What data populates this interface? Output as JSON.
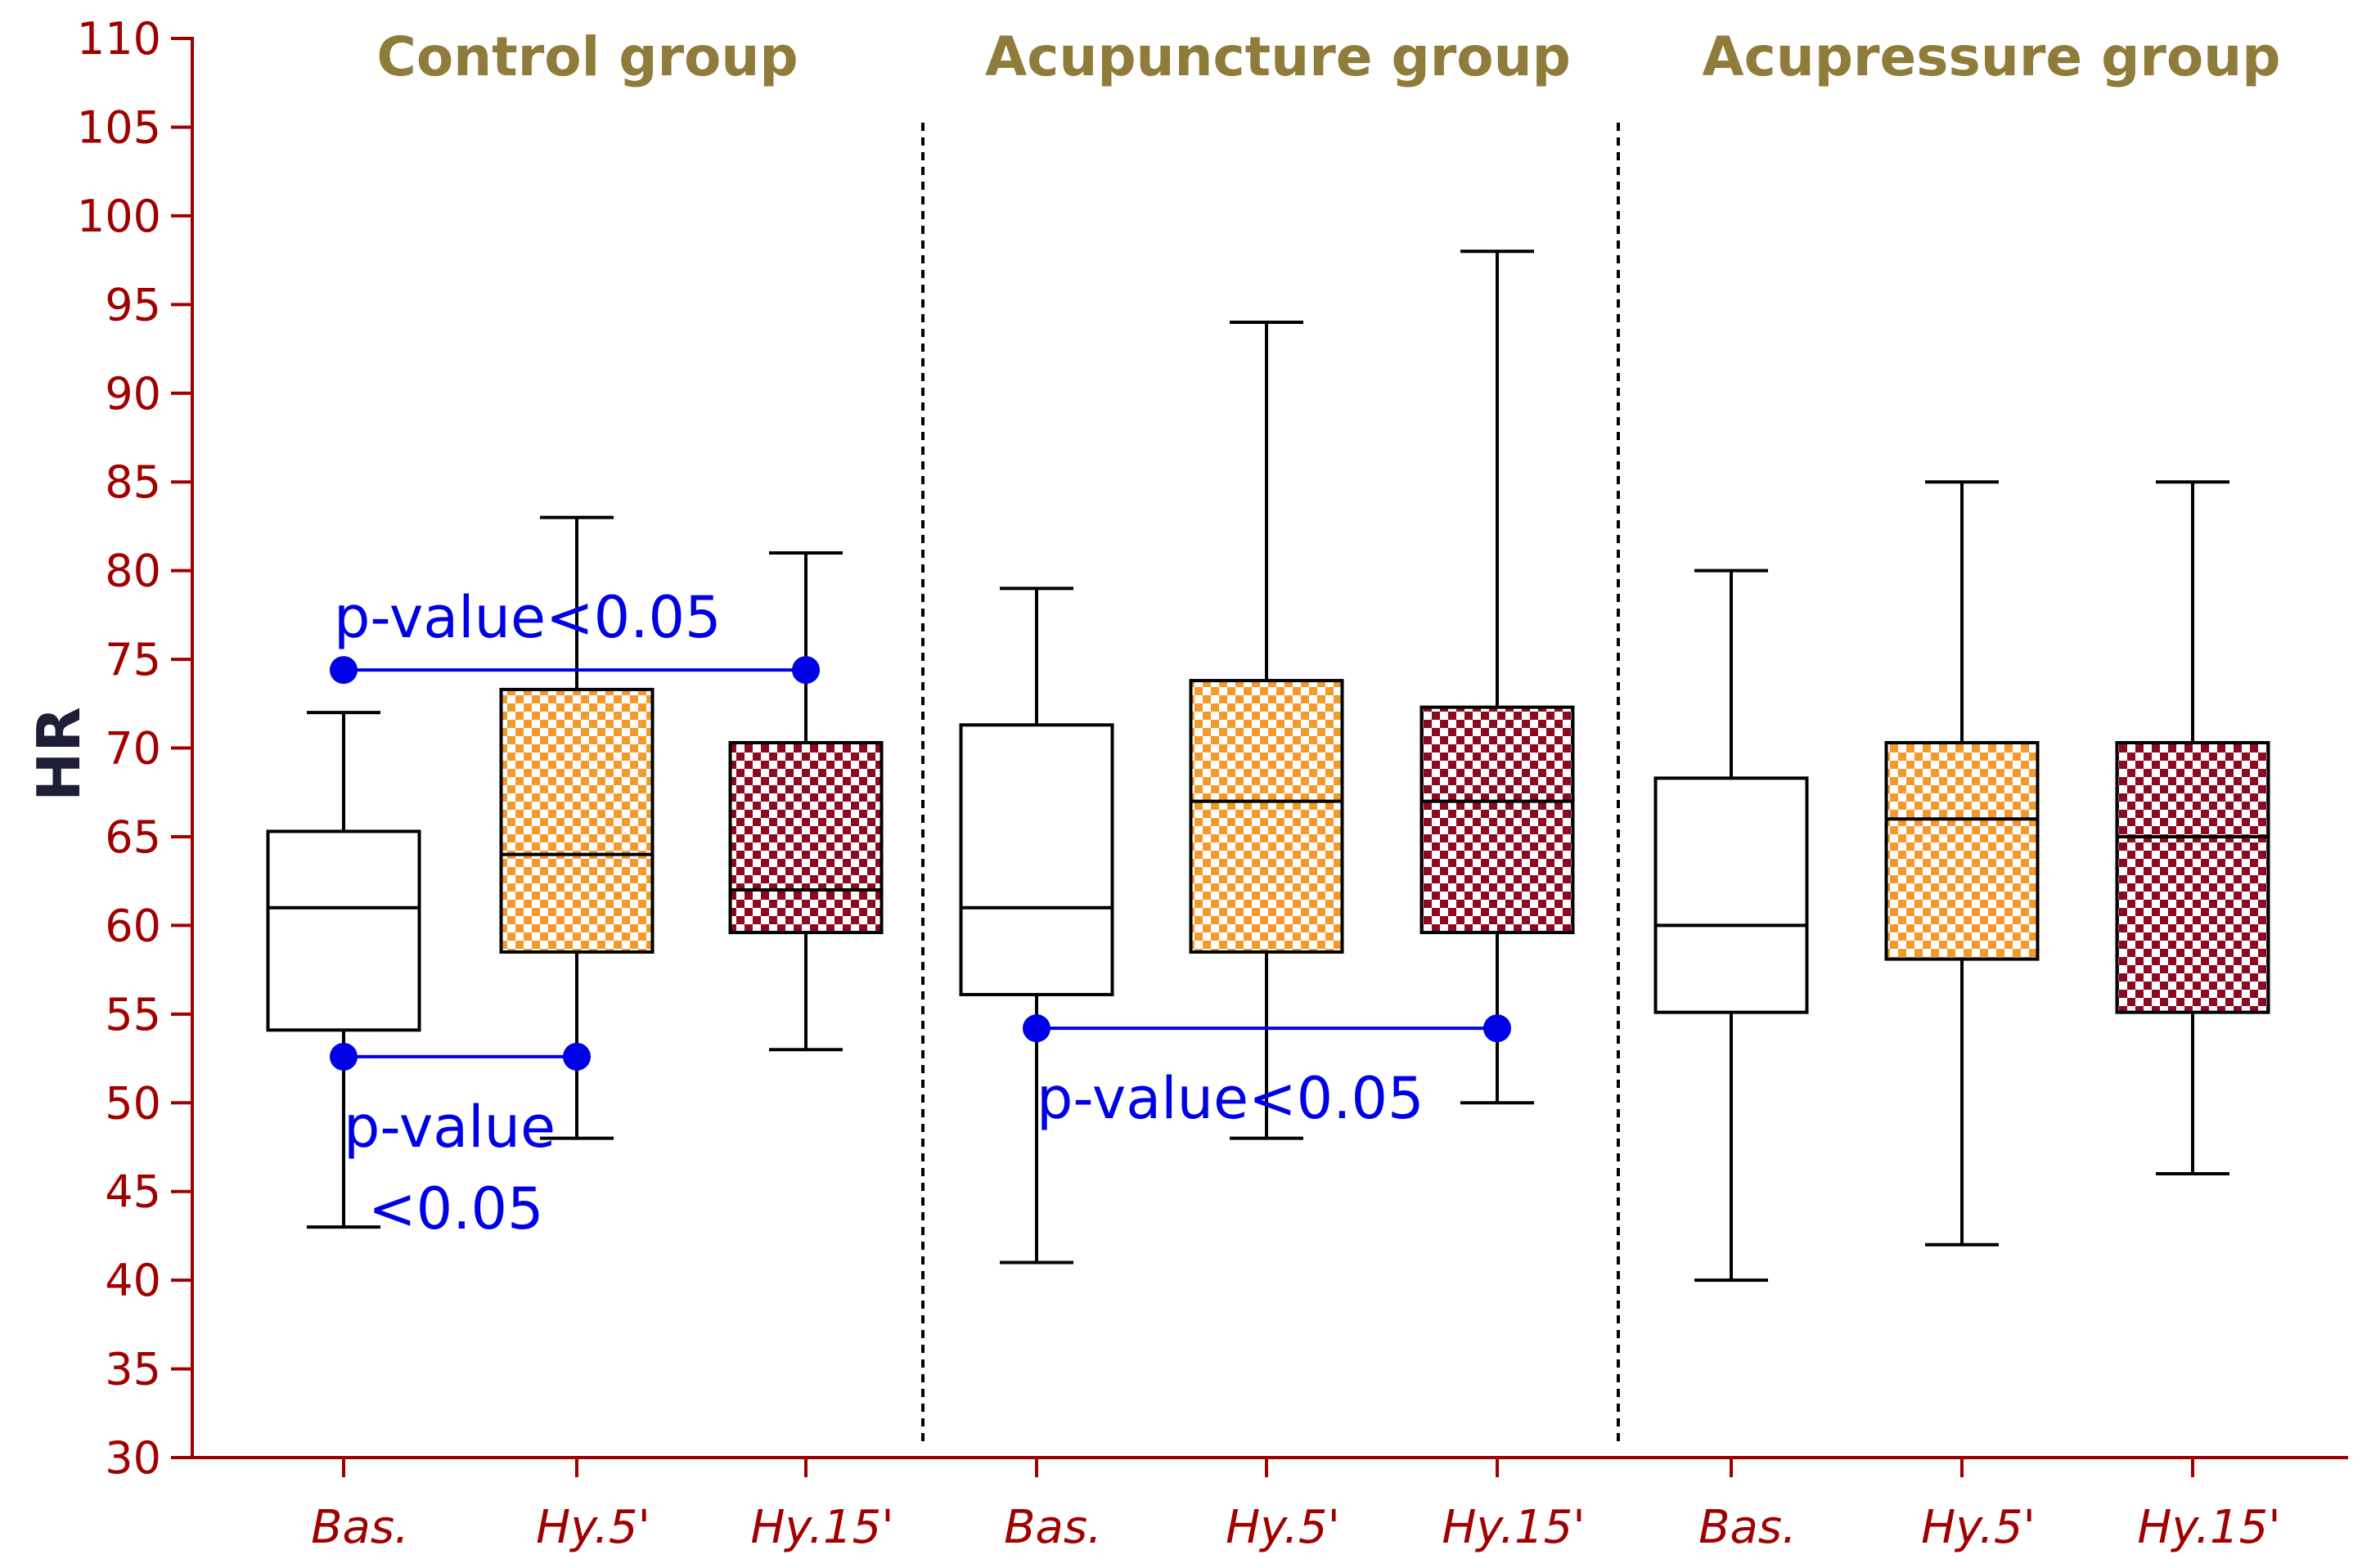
{
  "chart_data": {
    "type": "boxplot",
    "title": "",
    "xlabel": "",
    "ylabel": "HR",
    "ylim": [
      30,
      110
    ],
    "ytick_step": 5,
    "colors": {
      "axis": "#a00000",
      "group_title": "#8f7b3a",
      "annotation": "#0000e6",
      "baseline_fill": "#ffffff",
      "hy5_fill": "#f39a2b",
      "hy15_fill": "#8b0a1f",
      "checker_light": "#ffffff"
    },
    "groups": [
      {
        "title": "Control group",
        "boxes": [
          {
            "label": "Bas.",
            "pattern": "none",
            "whisker_low": 43,
            "q1": 54.1,
            "median": 61,
            "q3": 65.3,
            "whisker_high": 72
          },
          {
            "label": "Hy.5'",
            "pattern": "orange",
            "whisker_low": 48,
            "q1": 58.5,
            "median": 64,
            "q3": 73.3,
            "whisker_high": 83
          },
          {
            "label": "Hy.15'",
            "pattern": "red",
            "whisker_low": 53,
            "q1": 59.6,
            "median": 62,
            "q3": 70.3,
            "whisker_high": 81
          }
        ]
      },
      {
        "title": "Acupuncture group",
        "boxes": [
          {
            "label": "Bas.",
            "pattern": "none",
            "whisker_low": 41,
            "q1": 56.1,
            "median": 61,
            "q3": 71.3,
            "whisker_high": 79
          },
          {
            "label": "Hy.5'",
            "pattern": "orange",
            "whisker_low": 48,
            "q1": 58.5,
            "median": 67,
            "q3": 73.8,
            "whisker_high": 94
          },
          {
            "label": "Hy.15'",
            "pattern": "red",
            "whisker_low": 50,
            "q1": 59.6,
            "median": 67,
            "q3": 72.3,
            "whisker_high": 98
          }
        ]
      },
      {
        "title": "Acupressure group",
        "boxes": [
          {
            "label": "Bas.",
            "pattern": "none",
            "whisker_low": 40,
            "q1": 55.1,
            "median": 60,
            "q3": 68.3,
            "whisker_high": 80
          },
          {
            "label": "Hy.5'",
            "pattern": "orange",
            "whisker_low": 42,
            "q1": 58.1,
            "median": 66,
            "q3": 70.3,
            "whisker_high": 85
          },
          {
            "label": "Hy.15'",
            "pattern": "red",
            "whisker_low": 46,
            "q1": 55.1,
            "median": 65,
            "q3": 70.3,
            "whisker_high": 85
          }
        ]
      }
    ],
    "annotations": [
      {
        "from_box": 0,
        "to_box": 2,
        "y": 74.4,
        "text": "p-value<0.05",
        "text_lines": [
          "p-value<0.05"
        ],
        "text_position": "above"
      },
      {
        "from_box": 0,
        "to_box": 1,
        "y": 52.6,
        "text": "p-value <0.05",
        "text_lines": [
          "p-value",
          "<0.05"
        ],
        "text_position": "below"
      },
      {
        "from_box": 3,
        "to_box": 5,
        "y": 54.2,
        "text": "p-value<0.05",
        "text_lines": [
          "p-value<0.05"
        ],
        "text_position": "below"
      }
    ]
  }
}
